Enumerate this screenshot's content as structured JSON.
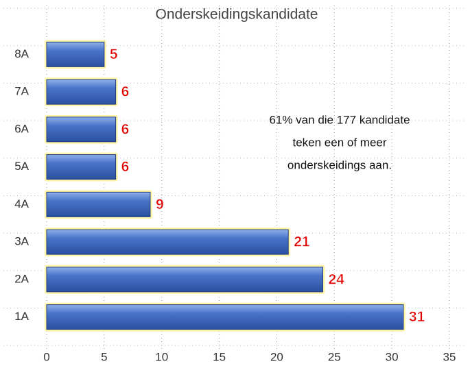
{
  "chart_data": {
    "type": "bar",
    "orientation": "horizontal",
    "title": "Onderskeidingskandidate",
    "categories": [
      "8A",
      "7A",
      "6A",
      "5A",
      "4A",
      "3A",
      "2A",
      "1A"
    ],
    "values": [
      5,
      6,
      6,
      6,
      9,
      21,
      24,
      31
    ],
    "color": "#4472c4",
    "xlim": [
      0,
      35
    ],
    "xticks": [
      0,
      5,
      10,
      15,
      20,
      25,
      30,
      35
    ],
    "grid": true,
    "annotation": [
      "61% van die 177 kandidate",
      "teken een of meer",
      "onderskeidings aan."
    ]
  }
}
